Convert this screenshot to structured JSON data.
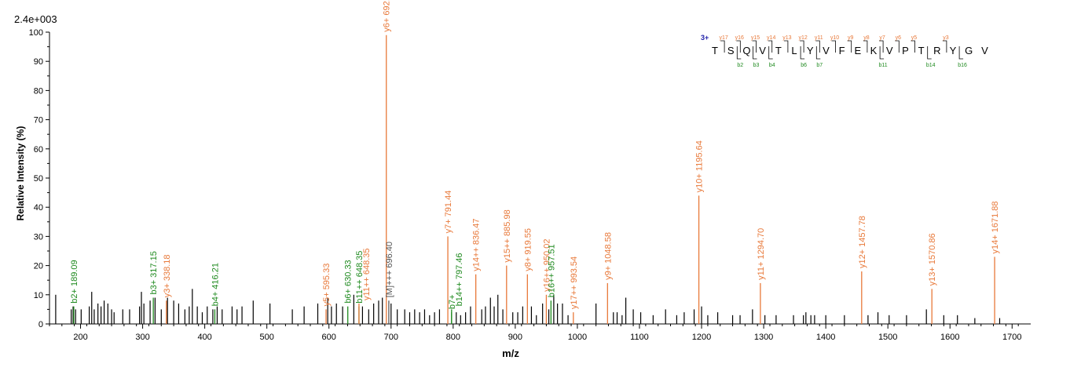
{
  "scale_label": "2.4e+003",
  "chart_data": {
    "type": "bar",
    "xlabel": "m/z",
    "ylabel": "Relative   Intensity (%)",
    "xlim": [
      150,
      1730
    ],
    "ylim": [
      0,
      100
    ],
    "x_ticks": [
      200,
      300,
      400,
      500,
      600,
      700,
      800,
      900,
      1000,
      1100,
      1200,
      1300,
      1400,
      1500,
      1600,
      1700
    ],
    "y_ticks": [
      0,
      10,
      20,
      30,
      40,
      50,
      60,
      70,
      80,
      90,
      100
    ],
    "colors": {
      "y_ion": "#e8793a",
      "b_ion": "#1f8a1f",
      "precursor": "#555555",
      "unassigned": "#000000"
    },
    "annotated_peaks": [
      {
        "mz": 189.09,
        "intensity": 6,
        "label": "b2+ 189.09",
        "type": "b"
      },
      {
        "mz": 317.15,
        "intensity": 9,
        "label": "b3+ 317.15",
        "type": "b"
      },
      {
        "mz": 338.18,
        "intensity": 8,
        "label": "y3+ 338.18",
        "type": "y"
      },
      {
        "mz": 416.21,
        "intensity": 5,
        "label": "b4+ 416.21",
        "type": "b"
      },
      {
        "mz": 595.33,
        "intensity": 5,
        "label": "y5+ 595.33",
        "type": "y"
      },
      {
        "mz": 630.33,
        "intensity": 6,
        "label": "b6+ 630.33",
        "type": "b"
      },
      {
        "mz": 648.35,
        "intensity": 6,
        "label": "b11++ 648.35",
        "type": "b"
      },
      {
        "mz": 648.35,
        "intensity": 7,
        "label": "y11++ 648.35",
        "type": "y"
      },
      {
        "mz": 692.37,
        "intensity": 99,
        "label": "y6+ 692.37",
        "type": "y"
      },
      {
        "mz": 696.4,
        "intensity": 8,
        "label": "[M]+++ 696.40",
        "type": "precursor"
      },
      {
        "mz": 791.44,
        "intensity": 30,
        "label": "y7+ 791.44",
        "type": "y"
      },
      {
        "mz": 797.46,
        "intensity": 4,
        "label": "b7+",
        "type": "b"
      },
      {
        "mz": 797.46,
        "intensity": 5,
        "label": "b14++ 797.46",
        "type": "b"
      },
      {
        "mz": 836.47,
        "intensity": 17,
        "label": "y14++ 836.47",
        "type": "y"
      },
      {
        "mz": 885.98,
        "intensity": 20,
        "label": "y15++ 885.98",
        "type": "y"
      },
      {
        "mz": 919.55,
        "intensity": 17,
        "label": "y8+ 919.55",
        "type": "y"
      },
      {
        "mz": 950.02,
        "intensity": 10,
        "label": "y16++ 950.02",
        "type": "y"
      },
      {
        "mz": 957.51,
        "intensity": 8,
        "label": "b16++ 957.51",
        "type": "b"
      },
      {
        "mz": 993.54,
        "intensity": 4,
        "label": "y17++ 993.54",
        "type": "y"
      },
      {
        "mz": 1048.58,
        "intensity": 14,
        "label": "y9+ 1048.58",
        "type": "y"
      },
      {
        "mz": 1195.64,
        "intensity": 44,
        "label": "y10+ 1195.64",
        "type": "y"
      },
      {
        "mz": 1294.7,
        "intensity": 14,
        "label": "y11+ 1294.70",
        "type": "y"
      },
      {
        "mz": 1457.78,
        "intensity": 18,
        "label": "y12+ 1457.78",
        "type": "y"
      },
      {
        "mz": 1570.86,
        "intensity": 12,
        "label": "y13+ 1570.86",
        "type": "y"
      },
      {
        "mz": 1671.88,
        "intensity": 23,
        "label": "y14+ 1671.88",
        "type": "y"
      }
    ],
    "unannotated_peaks": [
      [
        160,
        10
      ],
      [
        185,
        5
      ],
      [
        188,
        6
      ],
      [
        192,
        5
      ],
      [
        201,
        5
      ],
      [
        214,
        6
      ],
      [
        218,
        11
      ],
      [
        222,
        5
      ],
      [
        228,
        7
      ],
      [
        233,
        6
      ],
      [
        238,
        8
      ],
      [
        244,
        7
      ],
      [
        250,
        5
      ],
      [
        254,
        4
      ],
      [
        268,
        5
      ],
      [
        279,
        5
      ],
      [
        295,
        6
      ],
      [
        298,
        11
      ],
      [
        302,
        7
      ],
      [
        312,
        8
      ],
      [
        320,
        9
      ],
      [
        330,
        5
      ],
      [
        340,
        9
      ],
      [
        350,
        8
      ],
      [
        358,
        7
      ],
      [
        368,
        5
      ],
      [
        375,
        6
      ],
      [
        380,
        12
      ],
      [
        388,
        6
      ],
      [
        396,
        4
      ],
      [
        404,
        6
      ],
      [
        413,
        5
      ],
      [
        420,
        6
      ],
      [
        428,
        5
      ],
      [
        444,
        6
      ],
      [
        452,
        5
      ],
      [
        460,
        6
      ],
      [
        478,
        8
      ],
      [
        505,
        7
      ],
      [
        541,
        5
      ],
      [
        560,
        6
      ],
      [
        582,
        7
      ],
      [
        598,
        9
      ],
      [
        604,
        6
      ],
      [
        612,
        7
      ],
      [
        622,
        6
      ],
      [
        640,
        10
      ],
      [
        654,
        6
      ],
      [
        664,
        5
      ],
      [
        672,
        7
      ],
      [
        680,
        8
      ],
      [
        686,
        9
      ],
      [
        700,
        7
      ],
      [
        710,
        5
      ],
      [
        722,
        5
      ],
      [
        730,
        4
      ],
      [
        738,
        5
      ],
      [
        746,
        4
      ],
      [
        754,
        5
      ],
      [
        762,
        3
      ],
      [
        770,
        4
      ],
      [
        778,
        5
      ],
      [
        805,
        4
      ],
      [
        812,
        3
      ],
      [
        820,
        4
      ],
      [
        828,
        6
      ],
      [
        846,
        5
      ],
      [
        852,
        6
      ],
      [
        860,
        9
      ],
      [
        866,
        6
      ],
      [
        872,
        10
      ],
      [
        880,
        5
      ],
      [
        896,
        4
      ],
      [
        904,
        4
      ],
      [
        912,
        6
      ],
      [
        926,
        6
      ],
      [
        934,
        3
      ],
      [
        944,
        7
      ],
      [
        954,
        5
      ],
      [
        962,
        10
      ],
      [
        968,
        7
      ],
      [
        976,
        7
      ],
      [
        985,
        3
      ],
      [
        1030,
        7
      ],
      [
        1058,
        4
      ],
      [
        1064,
        4
      ],
      [
        1072,
        3
      ],
      [
        1078,
        9
      ],
      [
        1090,
        5
      ],
      [
        1102,
        4
      ],
      [
        1122,
        3
      ],
      [
        1142,
        5
      ],
      [
        1160,
        3
      ],
      [
        1172,
        4
      ],
      [
        1188,
        5
      ],
      [
        1200,
        6
      ],
      [
        1210,
        3
      ],
      [
        1226,
        4
      ],
      [
        1250,
        3
      ],
      [
        1262,
        3
      ],
      [
        1282,
        5
      ],
      [
        1302,
        3
      ],
      [
        1320,
        3
      ],
      [
        1348,
        3
      ],
      [
        1364,
        3
      ],
      [
        1368,
        4
      ],
      [
        1376,
        3
      ],
      [
        1382,
        3
      ],
      [
        1400,
        3
      ],
      [
        1430,
        3
      ],
      [
        1468,
        3
      ],
      [
        1484,
        4
      ],
      [
        1502,
        3
      ],
      [
        1530,
        3
      ],
      [
        1562,
        5
      ],
      [
        1590,
        3
      ],
      [
        1612,
        3
      ],
      [
        1640,
        2
      ],
      [
        1680,
        2
      ]
    ]
  },
  "sequence": {
    "charge": "3+",
    "residues": [
      "T",
      "S",
      "Q",
      "V",
      "T",
      "L",
      "Y",
      "V",
      "F",
      "E",
      "K",
      "V",
      "P",
      "T",
      "R",
      "Y",
      "G",
      "V"
    ],
    "y_labels": [
      "y17",
      "y16",
      "y15",
      "y14",
      "y13",
      "y12",
      "y11",
      "y10",
      "y9",
      "y8",
      "y7",
      "y6",
      "y5",
      "y3"
    ],
    "b_labels": [
      "b2",
      "b3",
      "b4",
      "b6",
      "b7",
      "b11",
      "b14",
      "b16"
    ]
  }
}
